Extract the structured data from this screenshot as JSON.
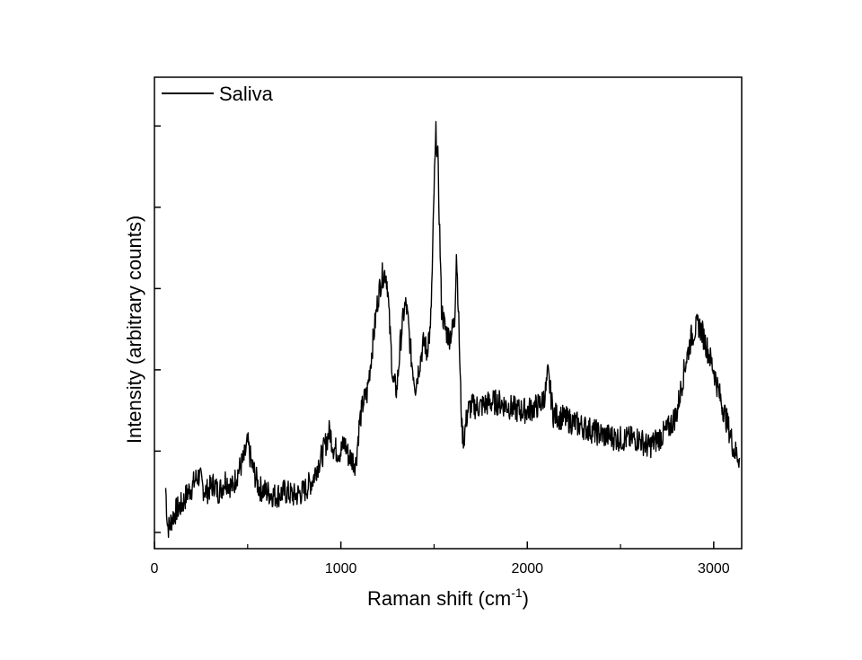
{
  "chart_data": {
    "type": "line",
    "xlabel_main": "Raman shift (cm",
    "xlabel_sup": "-1",
    "xlabel_end": ")",
    "ylabel": "Intensity (arbitrary counts)",
    "xlim": [
      0,
      3150
    ],
    "ylim": [
      -0.2,
      5.6
    ],
    "x_ticks": [
      0,
      1000,
      2000,
      3000
    ],
    "x_minor_ticks": [
      500,
      1500,
      2500
    ],
    "y_ticks": [
      0,
      1,
      2,
      3,
      4,
      5
    ],
    "grid": false,
    "legend_position": "top-left",
    "series": [
      {
        "name": "Saliva",
        "color": "#000000",
        "x": [
          60,
          70,
          80,
          90,
          100,
          120,
          150,
          180,
          200,
          220,
          240,
          260,
          280,
          300,
          320,
          340,
          360,
          380,
          400,
          420,
          440,
          460,
          480,
          500,
          520,
          540,
          560,
          600,
          650,
          700,
          750,
          800,
          850,
          870,
          900,
          920,
          940,
          960,
          980,
          1000,
          1020,
          1040,
          1060,
          1080,
          1100,
          1120,
          1140,
          1160,
          1180,
          1200,
          1220,
          1240,
          1250,
          1260,
          1280,
          1300,
          1320,
          1340,
          1350,
          1360,
          1380,
          1400,
          1420,
          1440,
          1450,
          1460,
          1470,
          1480,
          1490,
          1500,
          1510,
          1520,
          1530,
          1540,
          1560,
          1580,
          1600,
          1610,
          1620,
          1630,
          1640,
          1650,
          1660,
          1680,
          1700,
          1750,
          1800,
          1850,
          1900,
          1950,
          2000,
          2050,
          2080,
          2100,
          2110,
          2120,
          2140,
          2200,
          2300,
          2400,
          2500,
          2600,
          2650,
          2700,
          2750,
          2800,
          2850,
          2880,
          2900,
          2920,
          2940,
          2960,
          3000,
          3030,
          3060,
          3090,
          3110,
          3130,
          3140
        ],
        "y": [
          0.55,
          0.1,
          0.05,
          0.15,
          0.2,
          0.28,
          0.35,
          0.5,
          0.55,
          0.65,
          0.7,
          0.55,
          0.5,
          0.55,
          0.6,
          0.5,
          0.55,
          0.65,
          0.6,
          0.55,
          0.7,
          0.8,
          0.9,
          1.1,
          0.85,
          0.7,
          0.55,
          0.5,
          0.45,
          0.5,
          0.45,
          0.5,
          0.65,
          0.8,
          0.95,
          1.1,
          1.25,
          1.05,
          1.0,
          1.0,
          1.1,
          0.95,
          0.9,
          0.85,
          1.35,
          1.6,
          1.7,
          2.1,
          2.5,
          2.9,
          3.15,
          3.2,
          3.05,
          2.6,
          1.85,
          1.75,
          2.35,
          2.75,
          2.8,
          2.6,
          2.1,
          1.8,
          2.05,
          2.3,
          2.35,
          2.2,
          2.4,
          2.45,
          3.2,
          4.2,
          4.9,
          4.6,
          3.7,
          2.75,
          2.5,
          2.4,
          2.5,
          2.6,
          3.45,
          2.8,
          1.9,
          1.25,
          1.15,
          1.5,
          1.55,
          1.55,
          1.6,
          1.6,
          1.55,
          1.5,
          1.5,
          1.55,
          1.6,
          1.75,
          1.95,
          1.8,
          1.45,
          1.4,
          1.3,
          1.2,
          1.15,
          1.15,
          1.05,
          1.15,
          1.25,
          1.45,
          2.1,
          2.4,
          2.5,
          2.55,
          2.45,
          2.3,
          2.0,
          1.7,
          1.45,
          1.2,
          1.0,
          0.95,
          0.9
        ]
      }
    ]
  }
}
